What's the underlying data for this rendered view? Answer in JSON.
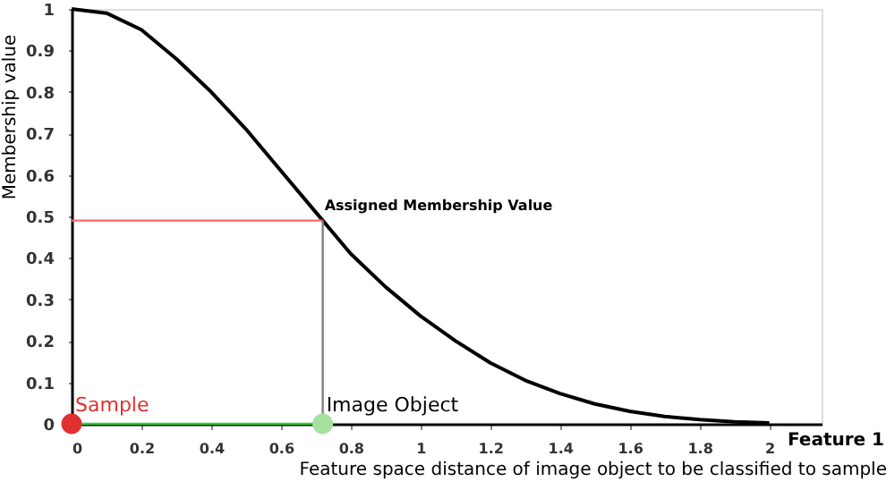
{
  "chart_data": {
    "type": "line",
    "xlabel": "Feature space distance of image object to be classified to sample",
    "ylabel": "Membership value",
    "xlim": [
      0,
      2.15
    ],
    "ylim": [
      0,
      1
    ],
    "xticks": [
      0,
      0.2,
      0.4,
      0.6,
      0.8,
      1,
      1.2,
      1.4,
      1.6,
      1.8,
      2
    ],
    "yticks": [
      0,
      0.1,
      0.2,
      0.3,
      0.4,
      0.5,
      0.6,
      0.7,
      0.8,
      0.9,
      1
    ],
    "grid": false,
    "annotations": [
      {
        "text": "Assigned Membership Value",
        "x": 0.72,
        "y": 0.49
      },
      "Feature 1"
    ],
    "series": [
      {
        "color": "#000000",
        "x": [
          0,
          0.1,
          0.2,
          0.3,
          0.4,
          0.5,
          0.6,
          0.7,
          0.72,
          0.8,
          0.9,
          1,
          1.1,
          1.2,
          1.3,
          1.4,
          1.5,
          1.6,
          1.7,
          1.8,
          1.9,
          2
        ],
        "values": [
          1,
          0.99,
          0.95,
          0.88,
          0.8,
          0.71,
          0.61,
          0.51,
          0.49,
          0.41,
          0.33,
          0.26,
          0.2,
          0.147,
          0.105,
          0.073,
          0.048,
          0.03,
          0.018,
          0.01,
          0.005,
          0.002
        ]
      },
      {
        "color": "#ff6666",
        "x": [
          0,
          0.72
        ],
        "values": [
          0.49,
          0.49
        ]
      },
      {
        "color": "#808080",
        "x": [
          0.72,
          0.72
        ],
        "values": [
          0,
          0.49
        ]
      },
      {
        "color": "#33cc33",
        "x": [
          0,
          0.72
        ],
        "values": [
          0,
          0
        ]
      },
      {
        "type": "scatter",
        "name": "Sample",
        "color": "#e03030",
        "x": [
          0
        ],
        "values": [
          0
        ]
      },
      {
        "type": "scatter",
        "name": "Image Object",
        "color": "#a8e0a0",
        "x": [
          0.72
        ],
        "values": [
          0
        ]
      }
    ]
  }
}
